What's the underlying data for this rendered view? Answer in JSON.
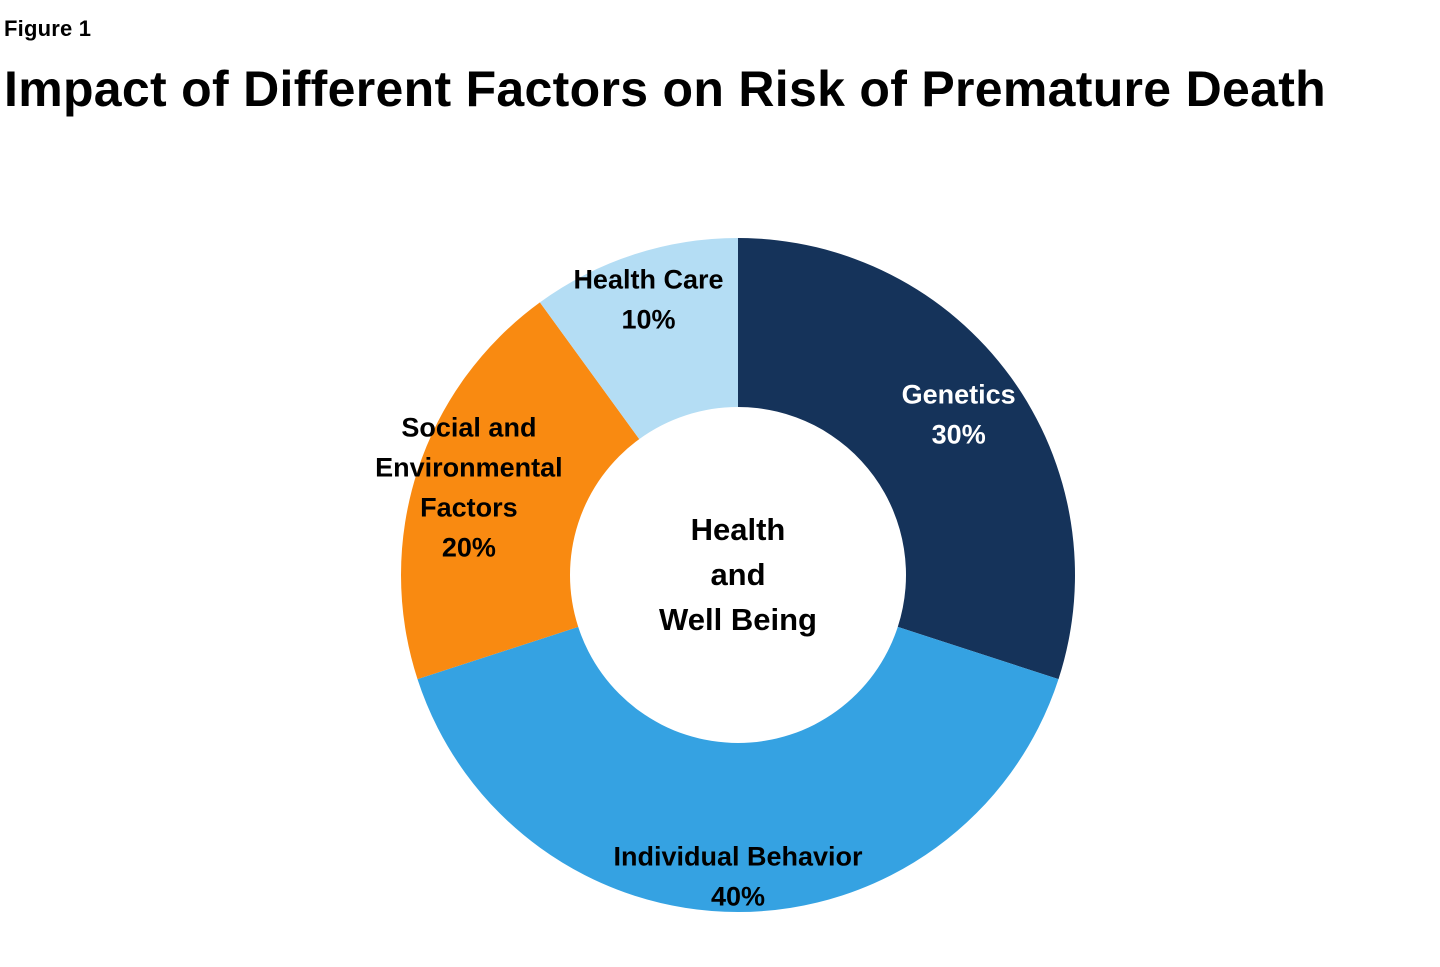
{
  "figure": {
    "label": "Figure 1",
    "title": "Impact of Different Factors on Risk of Premature Death"
  },
  "chart_data": {
    "type": "pie",
    "variant": "donut",
    "title": "Impact of Different Factors on Risk of Premature Death",
    "center_label": [
      "Health",
      "and",
      "Well Being"
    ],
    "slices": [
      {
        "label": [
          "Genetics"
        ],
        "value": 30,
        "value_label": "30%",
        "color": "#15335a",
        "text_color": "#ffffff"
      },
      {
        "label": [
          "Individual Behavior"
        ],
        "value": 40,
        "value_label": "40%",
        "color": "#35a2e2",
        "text_color": "#000000"
      },
      {
        "label": [
          "Social and",
          "Environmental",
          "Factors"
        ],
        "value": 20,
        "value_label": "20%",
        "color": "#f98a11",
        "text_color": "#000000"
      },
      {
        "label": [
          "Health Care"
        ],
        "value": 10,
        "value_label": "10%",
        "color": "#b4ddf4",
        "text_color": "#000000"
      }
    ],
    "start_angle": "12 o'clock",
    "direction": "clockwise",
    "legend": "none"
  }
}
